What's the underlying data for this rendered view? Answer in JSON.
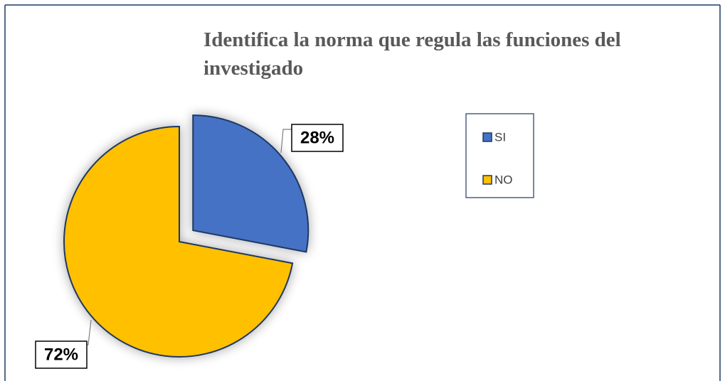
{
  "chart_data": {
    "type": "pie",
    "title": "Identifica la norma que regula las funciones del investigado",
    "categories": [
      "SI",
      "NO"
    ],
    "values": [
      28,
      72
    ],
    "value_labels": [
      "28%",
      "72%"
    ],
    "colors": [
      "#4472c4",
      "#ffc000"
    ],
    "legend": "right"
  }
}
